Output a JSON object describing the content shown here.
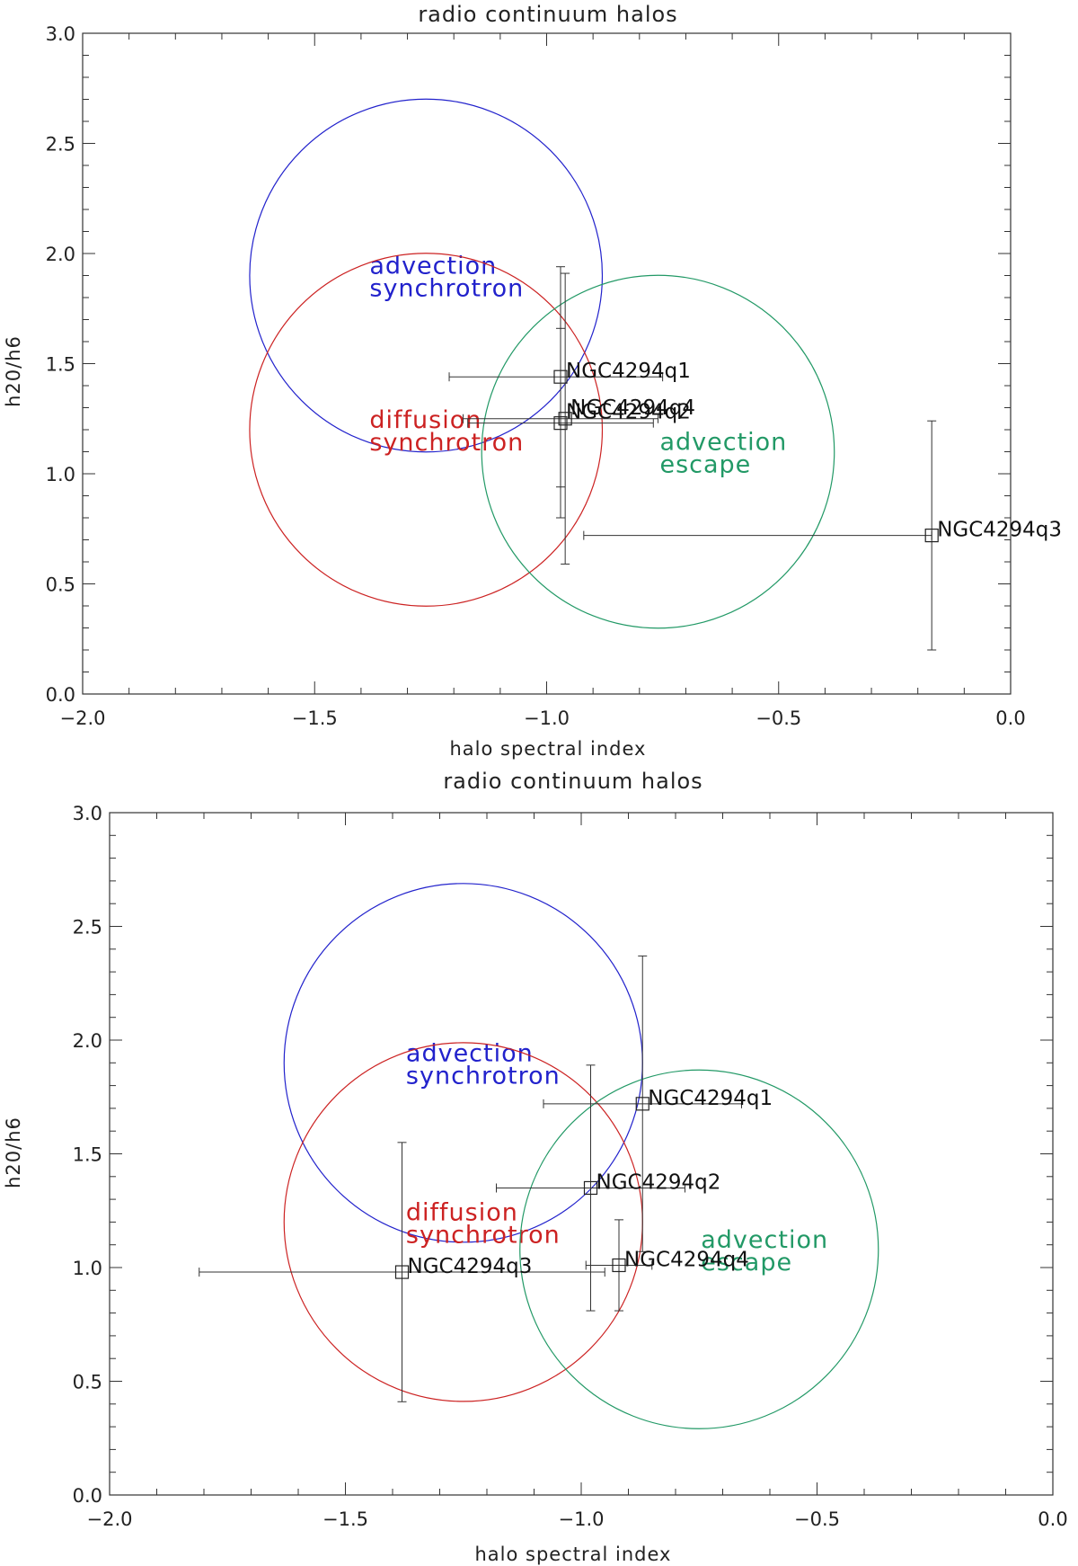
{
  "chart_data": [
    {
      "type": "scatter",
      "title": "radio continuum halos",
      "xlabel": "halo spectral index",
      "ylabel": "h20/h6",
      "xlim": [
        -2.0,
        0.0
      ],
      "ylim": [
        0.0,
        3.0
      ],
      "x_ticks": [
        "−2.0",
        "−1.5",
        "−1.0",
        "−0.5",
        "0.0"
      ],
      "y_ticks": [
        "0.0",
        "0.5",
        "1.0",
        "1.5",
        "2.0",
        "2.5",
        "3.0"
      ],
      "x_tick_values": [
        -2.0,
        -1.5,
        -1.0,
        -0.5,
        0.0
      ],
      "y_tick_values": [
        0.0,
        0.5,
        1.0,
        1.5,
        2.0,
        2.5,
        3.0
      ],
      "points": [
        {
          "label": "NGC4294q1",
          "x": -0.97,
          "y": 1.44,
          "xerr": [
            0.24,
            0.22
          ],
          "yerr": [
            0.5,
            0.5
          ]
        },
        {
          "label": "NGC4294q2",
          "x": -0.97,
          "y": 1.23,
          "xerr": [
            0.2,
            0.2
          ],
          "yerr": [
            0.43,
            0.43
          ]
        },
        {
          "label": "NGC4294q4",
          "x": -0.96,
          "y": 1.25,
          "xerr": [
            0.22,
            0.2
          ],
          "yerr": [
            0.66,
            0.66
          ]
        },
        {
          "label": "NGC4294q3",
          "x": -0.17,
          "y": 0.72,
          "xerr": [
            0.75,
            0.0
          ],
          "yerr": [
            0.52,
            0.52
          ]
        }
      ],
      "regions": [
        {
          "name": "adv-syn",
          "lines": [
            "advection",
            "synchrotron"
          ],
          "color": "#2222cc",
          "cx": -1.26,
          "cy": 1.9,
          "r": 0.38
        },
        {
          "name": "diff-syn",
          "lines": [
            "diffusion",
            "synchrotron"
          ],
          "color": "#cc2222",
          "cx": -1.26,
          "cy": 1.2,
          "r": 0.38
        },
        {
          "name": "adv-esc",
          "lines": [
            "advection",
            "escape"
          ],
          "color": "#229966",
          "cx": -0.76,
          "cy": 1.1,
          "r": 0.38
        }
      ]
    },
    {
      "type": "scatter",
      "title": "radio continuum halos",
      "xlabel": "halo spectral index",
      "ylabel": "h20/h6",
      "xlim": [
        -2.0,
        0.0
      ],
      "ylim": [
        0.0,
        3.0
      ],
      "x_ticks": [
        "−2.0",
        "−1.5",
        "−1.0",
        "−0.5",
        "0.0"
      ],
      "y_ticks": [
        "0.0",
        "0.5",
        "1.0",
        "1.5",
        "2.0",
        "2.5",
        "3.0"
      ],
      "x_tick_values": [
        -2.0,
        -1.5,
        -1.0,
        -0.5,
        0.0
      ],
      "y_tick_values": [
        0.0,
        0.5,
        1.0,
        1.5,
        2.0,
        2.5,
        3.0
      ],
      "points": [
        {
          "label": "NGC4294q1",
          "x": -0.87,
          "y": 1.72,
          "xerr": [
            0.21,
            0.21
          ],
          "yerr": [
            0.65,
            0.65
          ]
        },
        {
          "label": "NGC4294q2",
          "x": -0.98,
          "y": 1.35,
          "xerr": [
            0.2,
            0.2
          ],
          "yerr": [
            0.54,
            0.54
          ]
        },
        {
          "label": "NGC4294q3",
          "x": -1.38,
          "y": 0.98,
          "xerr": [
            0.43,
            0.43
          ],
          "yerr": [
            0.57,
            0.57
          ]
        },
        {
          "label": "NGC4294q4",
          "x": -0.92,
          "y": 1.01,
          "xerr": [
            0.07,
            0.07
          ],
          "yerr": [
            0.2,
            0.2
          ]
        }
      ],
      "regions": [
        {
          "name": "adv-syn",
          "lines": [
            "advection",
            "synchrotron"
          ],
          "color": "#2222cc",
          "cx": -1.25,
          "cy": 1.9,
          "r": 0.38
        },
        {
          "name": "diff-syn",
          "lines": [
            "diffusion",
            "synchrotron"
          ],
          "color": "#cc2222",
          "cx": -1.25,
          "cy": 1.2,
          "r": 0.38
        },
        {
          "name": "adv-esc",
          "lines": [
            "advection",
            "escape"
          ],
          "color": "#229966",
          "cx": -0.75,
          "cy": 1.08,
          "r": 0.38
        }
      ]
    }
  ]
}
